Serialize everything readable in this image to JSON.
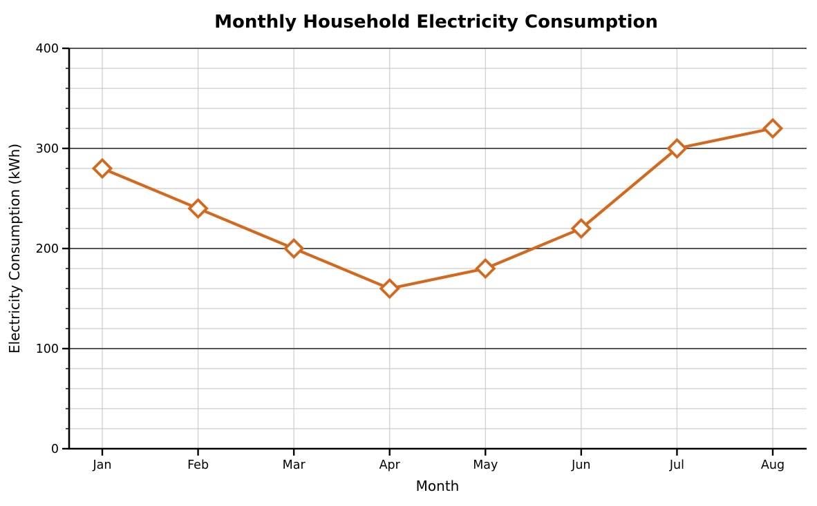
{
  "chart_data": {
    "type": "line",
    "title": "Monthly Household Electricity Consumption",
    "xlabel": "Month",
    "ylabel": "Electricity Consumption (kWh)",
    "categories": [
      "Jan",
      "Feb",
      "Mar",
      "Apr",
      "May",
      "Jun",
      "Jul",
      "Aug"
    ],
    "series": [
      {
        "name": "Electricity Consumption (kWh)",
        "values": [
          280,
          240,
          200,
          160,
          180,
          220,
          300,
          320
        ],
        "color": "#d2691e",
        "marker": "diamond",
        "marker_fill": "#ffffff"
      }
    ],
    "ylim": [
      0,
      400
    ],
    "y_major_ticks": [
      0,
      100,
      200,
      300,
      400
    ],
    "y_minor_step": 20,
    "grid": {
      "major_color": "#555555",
      "minor_color": "#cccccc",
      "vertical_color": "#cccccc",
      "major_on": true,
      "minor_on": true
    },
    "axis_color": "#000000",
    "legend_position": "none"
  }
}
